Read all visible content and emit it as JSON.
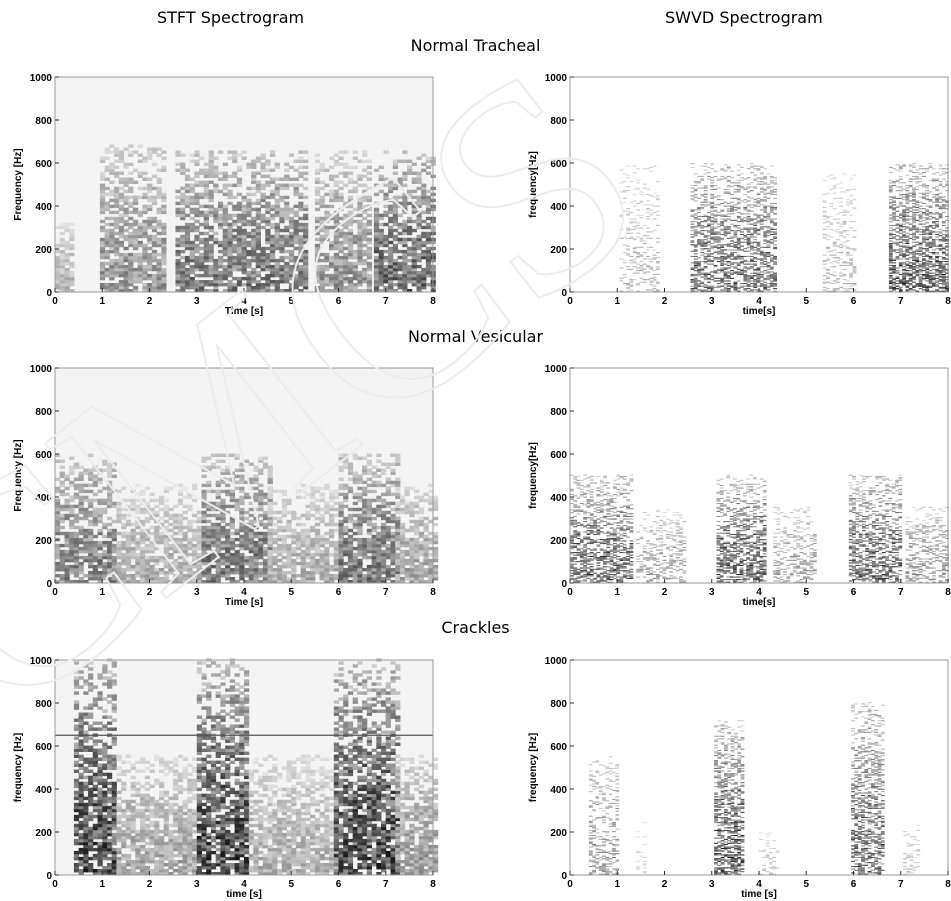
{
  "columns": {
    "left_title": "STFT Spectrogram",
    "right_title": "SWVD Spectrogram"
  },
  "rows": {
    "row1_title": "Normal Tracheal",
    "row2_title": "Normal Vesicular",
    "row3_title": "Crackles"
  },
  "watermark": {
    "text": "CMCS"
  },
  "chart_data": [
    {
      "type": "heatmap",
      "xlabel": "Time [s]",
      "ylabel": "Frequency [Hz]",
      "xlim": [
        0,
        8
      ],
      "ylim": [
        0,
        1000
      ],
      "xticks": [
        "0",
        "1",
        "2",
        "3",
        "4",
        "5",
        "6",
        "7",
        "8"
      ],
      "yticks": [
        "0",
        "200",
        "400",
        "600",
        "800",
        "1000"
      ],
      "active_segments": [
        [
          0.0,
          0.4,
          320,
          0.35
        ],
        [
          0.95,
          2.35,
          680,
          0.55
        ],
        [
          2.55,
          5.25,
          650,
          0.7
        ],
        [
          5.5,
          6.65,
          650,
          0.55
        ],
        [
          6.75,
          8.0,
          650,
          0.8
        ]
      ],
      "colormap": "gray-inverted"
    },
    {
      "type": "heatmap",
      "xlabel": "time[s]",
      "ylabel": "frequency[Hz]",
      "xlim": [
        0,
        8
      ],
      "ylim": [
        0,
        1000
      ],
      "xticks": [
        "0",
        "1",
        "2",
        "3",
        "4",
        "5",
        "6",
        "7",
        "8"
      ],
      "yticks": [
        "0",
        "200",
        "400",
        "600",
        "800",
        "1000"
      ],
      "active_segments": [
        [
          1.05,
          1.85,
          600,
          0.35
        ],
        [
          2.55,
          4.35,
          600,
          0.85
        ],
        [
          5.35,
          6.05,
          550,
          0.35
        ],
        [
          6.75,
          8.0,
          600,
          0.95
        ]
      ],
      "colormap": "gray-inverted"
    },
    {
      "type": "heatmap",
      "xlabel": "Time [s]",
      "ylabel": "Frequency [Hz]",
      "xlim": [
        0,
        8
      ],
      "ylim": [
        0,
        1000
      ],
      "xticks": [
        "0",
        "1",
        "2",
        "3",
        "4",
        "5",
        "6",
        "7",
        "8"
      ],
      "yticks": [
        "0",
        "200",
        "400",
        "600",
        "800",
        "1000"
      ],
      "active_segments": [
        [
          0.0,
          1.3,
          600,
          0.65
        ],
        [
          1.3,
          3.1,
          450,
          0.4
        ],
        [
          3.1,
          4.5,
          600,
          0.7
        ],
        [
          4.5,
          6.0,
          450,
          0.4
        ],
        [
          6.0,
          7.2,
          600,
          0.7
        ],
        [
          7.2,
          8.0,
          450,
          0.45
        ]
      ],
      "colormap": "gray-inverted"
    },
    {
      "type": "heatmap",
      "xlabel": "time[s]",
      "ylabel": "frequency[Hz]",
      "xlim": [
        0,
        8
      ],
      "ylim": [
        0,
        1000
      ],
      "xticks": [
        "0",
        "1",
        "2",
        "3",
        "4",
        "5",
        "6",
        "7",
        "8"
      ],
      "yticks": [
        "0",
        "200",
        "400",
        "600",
        "800",
        "1000"
      ],
      "active_segments": [
        [
          0.0,
          1.3,
          500,
          0.9
        ],
        [
          1.4,
          2.4,
          350,
          0.5
        ],
        [
          3.1,
          4.1,
          500,
          0.9
        ],
        [
          4.3,
          5.2,
          350,
          0.5
        ],
        [
          5.9,
          7.0,
          500,
          0.9
        ],
        [
          7.1,
          8.0,
          350,
          0.6
        ]
      ],
      "colormap": "gray-inverted"
    },
    {
      "type": "heatmap",
      "xlabel": "time [s]",
      "ylabel": "frequency [Hz]",
      "xlim": [
        0,
        8
      ],
      "ylim": [
        0,
        1000
      ],
      "xticks": [
        "0",
        "1",
        "2",
        "3",
        "4",
        "5",
        "6",
        "7",
        "8"
      ],
      "yticks": [
        "0",
        "200",
        "400",
        "600",
        "800",
        "1000"
      ],
      "reference_line_hz": 650,
      "active_segments": [
        [
          0.4,
          1.3,
          1000,
          0.95
        ],
        [
          1.3,
          3.0,
          550,
          0.45
        ],
        [
          3.0,
          4.1,
          1000,
          0.95
        ],
        [
          4.1,
          5.9,
          550,
          0.4
        ],
        [
          5.9,
          7.2,
          1000,
          0.95
        ],
        [
          7.2,
          8.0,
          550,
          0.5
        ]
      ],
      "colormap": "gray-inverted"
    },
    {
      "type": "heatmap",
      "xlabel": "time [s]",
      "ylabel": "frequency [Hz]",
      "xlim": [
        0,
        8
      ],
      "ylim": [
        0,
        1000
      ],
      "xticks": [
        "0",
        "1",
        "2",
        "3",
        "4",
        "5",
        "6",
        "7",
        "8"
      ],
      "yticks": [
        "0",
        "200",
        "400",
        "600",
        "800",
        "1000"
      ],
      "active_segments": [
        [
          0.4,
          1.0,
          550,
          0.55
        ],
        [
          3.05,
          3.65,
          720,
          0.95
        ],
        [
          5.95,
          6.65,
          800,
          0.85
        ],
        [
          1.4,
          1.6,
          250,
          0.2
        ],
        [
          4.0,
          4.4,
          200,
          0.3
        ],
        [
          7.05,
          7.35,
          250,
          0.3
        ]
      ],
      "colormap": "gray-inverted"
    }
  ]
}
